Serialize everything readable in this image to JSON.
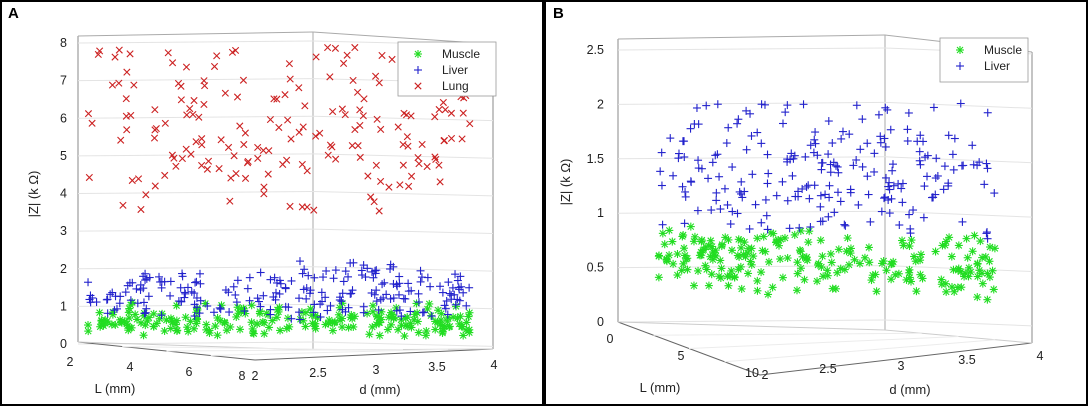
{
  "chart_data": [
    {
      "panel_label": "A",
      "type": "scatter",
      "axes": {
        "z_label": "|Z| (k Ω)",
        "x_label": "L (mm)",
        "y_label": "d (mm)",
        "z_ticks": [
          "0",
          "1",
          "2",
          "3",
          "4",
          "5",
          "6",
          "7",
          "8"
        ],
        "x_ticks": [
          "2",
          "4",
          "6",
          "8"
        ],
        "y_ticks": [
          "2",
          "2.5",
          "3",
          "3.5",
          "4"
        ],
        "zlim": [
          0,
          8
        ],
        "xlim": [
          2,
          8
        ],
        "ylim": [
          2,
          4
        ]
      },
      "legend": {
        "placement": "top-right",
        "entries": [
          {
            "label": "Muscle",
            "marker": "*",
            "color": "#22dd22"
          },
          {
            "label": "Liver",
            "marker": "+",
            "color": "#2222cc"
          },
          {
            "label": "Lung",
            "marker": "x",
            "color": "#cc2222"
          }
        ]
      },
      "series": [
        {
          "name": "Muscle",
          "count": 220,
          "value_range": [
            0.3,
            1.0
          ],
          "center": 0.65
        },
        {
          "name": "Liver",
          "count": 220,
          "value_range": [
            0.8,
            2.1
          ],
          "center": 1.4
        },
        {
          "name": "Lung",
          "count": 180,
          "value_range": [
            3.7,
            7.8
          ],
          "center": 5.8
        }
      ]
    },
    {
      "panel_label": "B",
      "type": "scatter",
      "axes": {
        "z_label": "|Z| (k Ω)",
        "x_label": "L (mm)",
        "y_label": "d (mm)",
        "z_ticks": [
          "0",
          "0.5",
          "1",
          "1.5",
          "2",
          "2.5"
        ],
        "x_ticks": [
          "0",
          "5",
          "10"
        ],
        "y_ticks": [
          "2",
          "2.5",
          "3",
          "3.5",
          "4"
        ],
        "zlim": [
          0,
          2.5
        ],
        "xlim": [
          0,
          10
        ],
        "ylim": [
          2,
          4
        ]
      },
      "legend": {
        "placement": "top-right",
        "entries": [
          {
            "label": "Muscle",
            "marker": "*",
            "color": "#22dd22"
          },
          {
            "label": "Liver",
            "marker": "+",
            "color": "#2222cc"
          }
        ]
      },
      "series": [
        {
          "name": "Muscle",
          "count": 220,
          "value_range": [
            0.32,
            0.85
          ],
          "center": 0.6
        },
        {
          "name": "Liver",
          "count": 220,
          "value_range": [
            0.9,
            2.05
          ],
          "center": 1.45
        }
      ]
    }
  ]
}
